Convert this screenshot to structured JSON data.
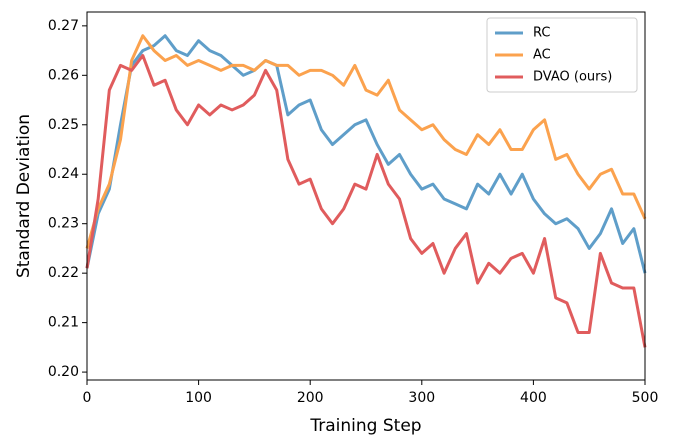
{
  "chart_data": {
    "type": "line",
    "x_label": "Training Step",
    "y_label": "Standard Deviation",
    "x": [
      0,
      10,
      20,
      30,
      40,
      50,
      60,
      70,
      80,
      90,
      100,
      110,
      120,
      130,
      140,
      150,
      160,
      170,
      180,
      190,
      200,
      210,
      220,
      230,
      240,
      250,
      260,
      270,
      280,
      290,
      300,
      310,
      320,
      330,
      340,
      350,
      360,
      370,
      380,
      390,
      400,
      410,
      420,
      430,
      440,
      450,
      460,
      470,
      480,
      490,
      500
    ],
    "series": [
      {
        "name": "RC",
        "color": "#5f9ec9",
        "values": [
          0.221,
          0.232,
          0.237,
          0.25,
          0.262,
          0.265,
          0.266,
          0.268,
          0.265,
          0.264,
          0.267,
          0.265,
          0.264,
          0.262,
          0.26,
          0.261,
          0.263,
          0.262,
          0.252,
          0.254,
          0.255,
          0.249,
          0.246,
          0.248,
          0.25,
          0.251,
          0.246,
          0.242,
          0.244,
          0.24,
          0.237,
          0.238,
          0.235,
          0.234,
          0.233,
          0.238,
          0.236,
          0.24,
          0.236,
          0.24,
          0.235,
          0.232,
          0.23,
          0.231,
          0.229,
          0.225,
          0.228,
          0.233,
          0.226,
          0.229,
          0.22
        ]
      },
      {
        "name": "AC",
        "color": "#fba24e",
        "values": [
          0.225,
          0.233,
          0.238,
          0.247,
          0.263,
          0.268,
          0.265,
          0.263,
          0.264,
          0.262,
          0.263,
          0.262,
          0.261,
          0.262,
          0.262,
          0.261,
          0.263,
          0.262,
          0.262,
          0.26,
          0.261,
          0.261,
          0.26,
          0.258,
          0.262,
          0.257,
          0.256,
          0.259,
          0.253,
          0.251,
          0.249,
          0.25,
          0.247,
          0.245,
          0.244,
          0.248,
          0.246,
          0.249,
          0.245,
          0.245,
          0.249,
          0.251,
          0.243,
          0.244,
          0.24,
          0.237,
          0.24,
          0.241,
          0.236,
          0.236,
          0.231
        ]
      },
      {
        "name": "DVAO (ours)",
        "color": "#e05c5d",
        "values": [
          0.221,
          0.235,
          0.257,
          0.262,
          0.261,
          0.264,
          0.258,
          0.259,
          0.253,
          0.25,
          0.254,
          0.252,
          0.254,
          0.253,
          0.254,
          0.256,
          0.261,
          0.257,
          0.243,
          0.238,
          0.239,
          0.233,
          0.23,
          0.233,
          0.238,
          0.237,
          0.244,
          0.238,
          0.235,
          0.227,
          0.224,
          0.226,
          0.22,
          0.225,
          0.228,
          0.218,
          0.222,
          0.22,
          0.223,
          0.224,
          0.22,
          0.227,
          0.215,
          0.214,
          0.208,
          0.208,
          0.224,
          0.218,
          0.217,
          0.217,
          0.205
        ]
      }
    ],
    "xlim": [
      0,
      500
    ],
    "xticks": [
      0,
      100,
      200,
      300,
      400,
      500
    ],
    "ylim": [
      0.1984,
      0.2728
    ],
    "yticks": [
      {
        "value": 0.2,
        "label": "0.20"
      },
      0.21,
      0.22,
      0.23,
      0.24,
      0.25,
      0.26,
      0.27
    ],
    "grid": false,
    "legend": "upper right"
  }
}
